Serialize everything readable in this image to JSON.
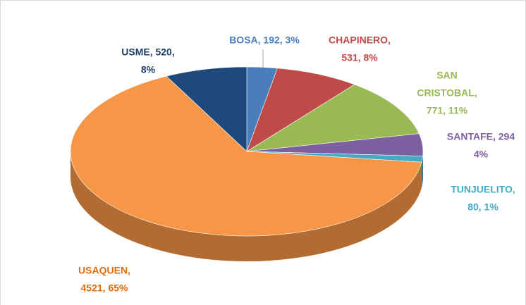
{
  "chart_data": {
    "type": "pie3d",
    "categories": [
      "BOSA",
      "CHAPINERO",
      "SAN CRISTOBAL",
      "SANTAFE",
      "TUNJUELITO",
      "USAQUEN",
      "USME"
    ],
    "values": [
      192,
      531,
      771,
      294,
      80,
      4521,
      520
    ],
    "value_labels": [
      [
        "BOSA, 192, 3%"
      ],
      [
        "CHAPINERO,",
        "531, 8%"
      ],
      [
        "SAN",
        "CRISTOBAL,",
        "771, 11%"
      ],
      [
        "SANTAFE, 294",
        "4%"
      ],
      [
        "TUNJUELITO,",
        "80, 1%"
      ],
      [
        "USAQUEN,",
        "4521, 65%"
      ],
      [
        "USME, 520,",
        "8%"
      ]
    ],
    "colors": [
      "#4a7ebb",
      "#be4b48",
      "#98b954",
      "#7d60a0",
      "#46aac5",
      "#f79646",
      "#1f497d"
    ],
    "label_colors": [
      "#4a7ebb",
      "#be4b48",
      "#98b954",
      "#7d60a0",
      "#46aac5",
      "#e46c0a",
      "#1f3f6b"
    ]
  }
}
